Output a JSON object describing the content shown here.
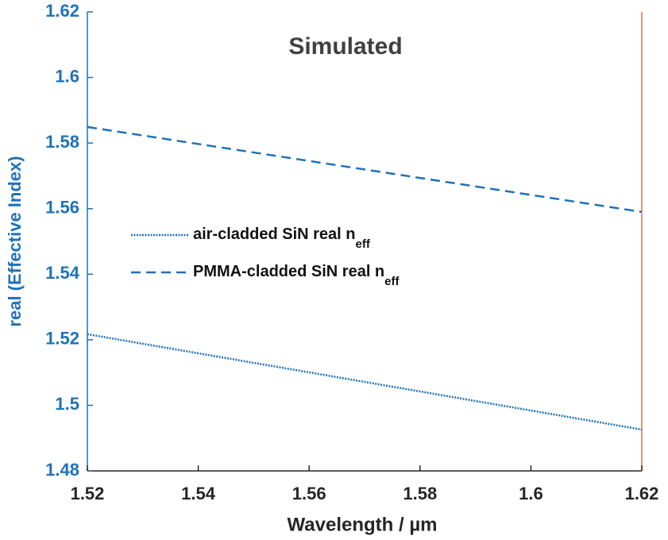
{
  "chart_data": {
    "type": "line",
    "title": "Simulated",
    "x_label": "Wavelength / µm",
    "y_label": "real (Effective Index)",
    "x": [
      1.52,
      1.62
    ],
    "series": [
      {
        "name": "air-cladded SiN real n",
        "subscript": "eff",
        "color": "#1f72b8",
        "dash": "dotted",
        "values": [
          1.5217,
          1.4926
        ]
      },
      {
        "name": "PMMA-cladded SiN real n",
        "subscript": "eff",
        "color": "#1f72b8",
        "dash": "dashed",
        "values": [
          1.5849,
          1.559
        ]
      }
    ],
    "xlim": [
      1.52,
      1.62
    ],
    "xticks": [
      1.52,
      1.54,
      1.56,
      1.58,
      1.6,
      1.62
    ],
    "ylim": [
      1.48,
      1.62
    ],
    "yticks": [
      1.48,
      1.5,
      1.52,
      1.54,
      1.56,
      1.58,
      1.6,
      1.62
    ],
    "legend": "left"
  }
}
